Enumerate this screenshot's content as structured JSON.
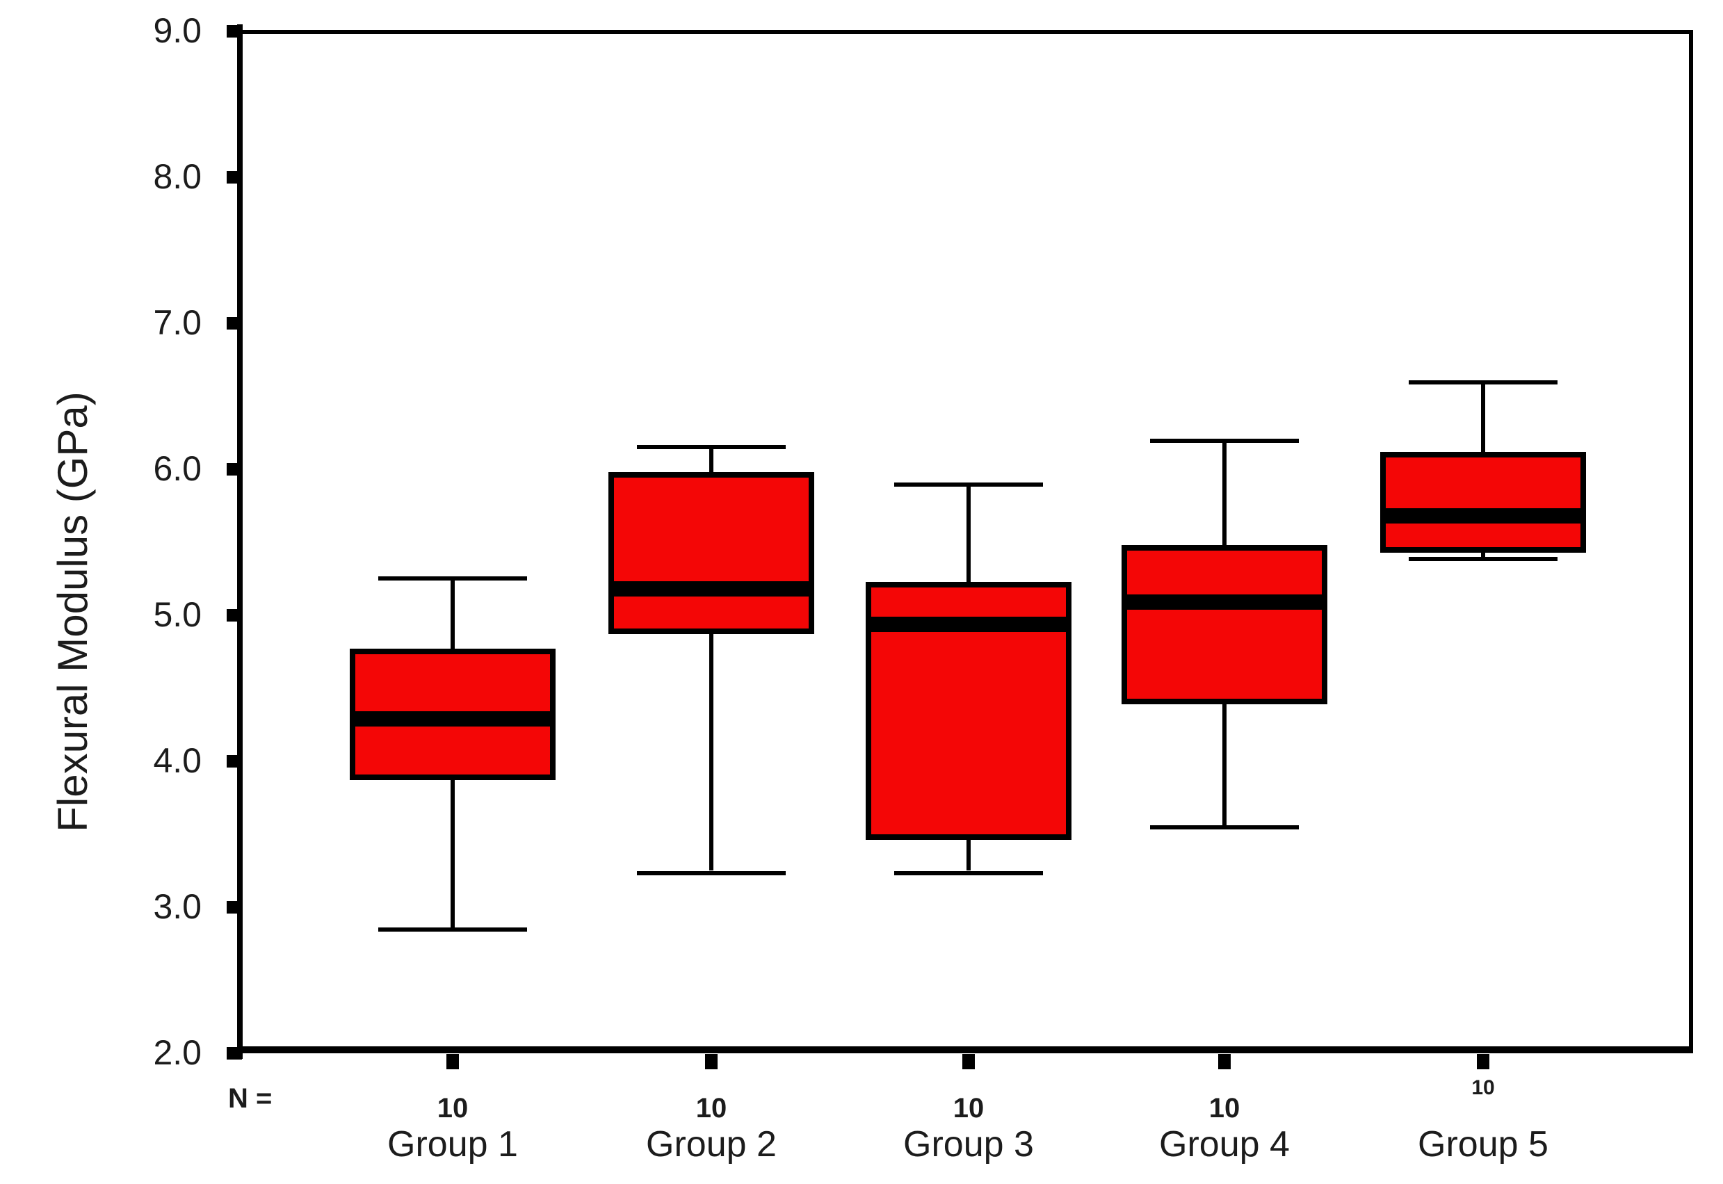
{
  "chart_data": {
    "type": "boxplot",
    "title": "",
    "ylabel": "Flexural Modulus (GPa)",
    "xlabel": "",
    "n_label": "N =",
    "ylim": [
      2.0,
      9.0
    ],
    "ytick_step": 1.0,
    "yticks": [
      "9.0",
      "8.0",
      "7.0",
      "6.0",
      "5.0",
      "4.0",
      "3.0",
      "2.0"
    ],
    "grid": false,
    "legend": "none",
    "box_fill_color": "#f40606",
    "line_color": "#000000",
    "categories": [
      "Group 1",
      "Group 2",
      "Group 3",
      "Group 4",
      "Group 5"
    ],
    "groups": [
      {
        "label": "Group 1",
        "n": "10",
        "whisker_low": 2.86,
        "q1": 3.87,
        "median": 4.29,
        "q3": 4.77,
        "whisker_high": 5.24
      },
      {
        "label": "Group 2",
        "n": "10",
        "whisker_low": 3.25,
        "q1": 4.87,
        "median": 5.18,
        "q3": 5.98,
        "whisker_high": 6.14
      },
      {
        "label": "Group 3",
        "n": "10",
        "whisker_low": 3.25,
        "q1": 3.46,
        "median": 4.94,
        "q3": 5.23,
        "whisker_high": 5.88
      },
      {
        "label": "Group 4",
        "n": "10",
        "whisker_low": 3.56,
        "q1": 4.39,
        "median": 5.09,
        "q3": 5.48,
        "whisker_high": 6.18
      },
      {
        "label": "Group 5",
        "n": "10",
        "whisker_low": 5.4,
        "q1": 5.43,
        "median": 5.68,
        "q3": 6.12,
        "whisker_high": 6.58
      }
    ]
  }
}
